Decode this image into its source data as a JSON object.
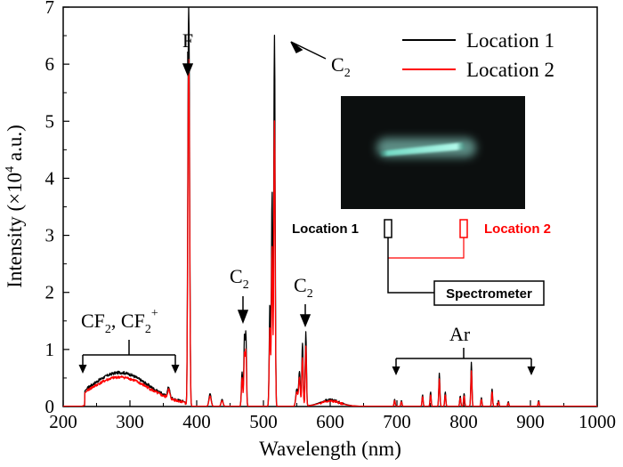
{
  "chart_data": {
    "type": "line",
    "title": "",
    "xlabel": "Wavelength (nm)",
    "ylabel": "Intensity (×10",
    "ylabel_sup": "4",
    "ylabel_tail": " a.u.)",
    "xlim": [
      200,
      1000
    ],
    "ylim": [
      0,
      7
    ],
    "xticks": [
      200,
      300,
      400,
      500,
      600,
      700,
      800,
      900,
      1000
    ],
    "yticks": [
      0,
      1,
      2,
      3,
      4,
      5,
      6,
      7
    ],
    "legend_position": "top-right",
    "series": [
      {
        "name": "Location 1",
        "color": "#000000",
        "peaks": [
          {
            "x": 388.5,
            "y": 5.72,
            "w": 1.1
          },
          {
            "x": 387.1,
            "y": 3.0,
            "w": 0.9
          },
          {
            "x": 516.5,
            "y": 6.5,
            "w": 1.0
          },
          {
            "x": 512.9,
            "y": 3.75,
            "w": 0.9
          },
          {
            "x": 509.7,
            "y": 1.8,
            "w": 1.0
          },
          {
            "x": 473.7,
            "y": 1.25,
            "w": 0.9
          },
          {
            "x": 471.5,
            "y": 1.2,
            "w": 0.9
          },
          {
            "x": 468.0,
            "y": 0.6,
            "w": 1.0
          },
          {
            "x": 563.5,
            "y": 1.3,
            "w": 0.9
          },
          {
            "x": 558.5,
            "y": 1.1,
            "w": 1.0
          },
          {
            "x": 554.0,
            "y": 0.6,
            "w": 1.2
          },
          {
            "x": 550.0,
            "y": 0.3,
            "w": 1.5
          },
          {
            "x": 420.0,
            "y": 0.22,
            "w": 1.6
          },
          {
            "x": 358.0,
            "y": 0.18,
            "w": 1.6
          },
          {
            "x": 438.0,
            "y": 0.12,
            "w": 1.4
          },
          {
            "x": 696.5,
            "y": 0.12,
            "w": 0.8
          },
          {
            "x": 706.7,
            "y": 0.1,
            "w": 0.8
          },
          {
            "x": 738.4,
            "y": 0.2,
            "w": 0.8
          },
          {
            "x": 750.4,
            "y": 0.25,
            "w": 0.8
          },
          {
            "x": 763.5,
            "y": 0.58,
            "w": 0.8
          },
          {
            "x": 772.4,
            "y": 0.25,
            "w": 0.8
          },
          {
            "x": 794.8,
            "y": 0.18,
            "w": 0.8
          },
          {
            "x": 800.6,
            "y": 0.22,
            "w": 0.8
          },
          {
            "x": 811.5,
            "y": 0.77,
            "w": 0.8
          },
          {
            "x": 826.5,
            "y": 0.15,
            "w": 0.8
          },
          {
            "x": 842.5,
            "y": 0.3,
            "w": 0.8
          },
          {
            "x": 852.1,
            "y": 0.1,
            "w": 0.8
          },
          {
            "x": 866.8,
            "y": 0.08,
            "w": 0.8
          },
          {
            "x": 912.3,
            "y": 0.1,
            "w": 0.8
          }
        ],
        "bands": [
          {
            "x": 285,
            "y": 0.55,
            "w": 42
          },
          {
            "x": 600,
            "y": 0.11,
            "w": 15
          }
        ]
      },
      {
        "name": "Location 2",
        "color": "#ff0000",
        "peaks": [
          {
            "x": 388.5,
            "y": 5.05,
            "w": 1.1
          },
          {
            "x": 387.1,
            "y": 2.5,
            "w": 0.9
          },
          {
            "x": 516.5,
            "y": 5.0,
            "w": 1.0
          },
          {
            "x": 512.9,
            "y": 2.8,
            "w": 0.9
          },
          {
            "x": 509.7,
            "y": 1.4,
            "w": 1.0
          },
          {
            "x": 473.7,
            "y": 0.95,
            "w": 0.9
          },
          {
            "x": 471.5,
            "y": 0.9,
            "w": 0.9
          },
          {
            "x": 468.0,
            "y": 0.5,
            "w": 1.0
          },
          {
            "x": 563.5,
            "y": 1.05,
            "w": 0.9
          },
          {
            "x": 558.5,
            "y": 0.85,
            "w": 1.0
          },
          {
            "x": 554.0,
            "y": 0.5,
            "w": 1.2
          },
          {
            "x": 550.0,
            "y": 0.25,
            "w": 1.5
          },
          {
            "x": 420.0,
            "y": 0.18,
            "w": 1.6
          },
          {
            "x": 358.0,
            "y": 0.15,
            "w": 1.6
          },
          {
            "x": 438.0,
            "y": 0.1,
            "w": 1.4
          },
          {
            "x": 696.5,
            "y": 0.1,
            "w": 0.8
          },
          {
            "x": 706.7,
            "y": 0.08,
            "w": 0.8
          },
          {
            "x": 738.4,
            "y": 0.17,
            "w": 0.8
          },
          {
            "x": 750.4,
            "y": 0.2,
            "w": 0.8
          },
          {
            "x": 763.5,
            "y": 0.48,
            "w": 0.8
          },
          {
            "x": 772.4,
            "y": 0.2,
            "w": 0.8
          },
          {
            "x": 794.8,
            "y": 0.15,
            "w": 0.8
          },
          {
            "x": 800.6,
            "y": 0.18,
            "w": 0.8
          },
          {
            "x": 811.5,
            "y": 0.62,
            "w": 0.8
          },
          {
            "x": 826.5,
            "y": 0.12,
            "w": 0.8
          },
          {
            "x": 842.5,
            "y": 0.25,
            "w": 0.8
          },
          {
            "x": 852.1,
            "y": 0.08,
            "w": 0.8
          },
          {
            "x": 866.8,
            "y": 0.06,
            "w": 0.8
          },
          {
            "x": 912.3,
            "y": 0.08,
            "w": 0.8
          }
        ],
        "bands": [
          {
            "x": 285,
            "y": 0.47,
            "w": 42
          },
          {
            "x": 600,
            "y": 0.09,
            "w": 15
          }
        ]
      }
    ],
    "annotations": {
      "F": {
        "label": "F",
        "x": 388.5,
        "y": 5.85
      },
      "C2_main": {
        "label": "C",
        "sub": "2",
        "x": 516.5,
        "y": 6.5
      },
      "C2_473": {
        "label": "C",
        "sub": "2",
        "x": 473.7,
        "y": 1.35
      },
      "C2_563": {
        "label": "C",
        "sub": "2",
        "x": 563.5,
        "y": 1.4
      },
      "CF2": {
        "text1": "CF",
        "sub1": "2",
        "sep": ", ",
        "text2": "CF",
        "sub2": "2",
        "sup2": "+",
        "from": 232,
        "to": 372,
        "y": 0.95
      },
      "Ar": {
        "label": "Ar",
        "from": 695,
        "to": 900,
        "y": 1.08
      }
    }
  },
  "inset": {
    "location1_label": "Location 1",
    "location2_label": "Location 2",
    "spectrometer_label": "Spectrometer",
    "location1_color": "#000000",
    "location2_color": "#ff0000",
    "photo_bg": "#0c0f0f",
    "plasma_color": "#9ff5e6"
  }
}
